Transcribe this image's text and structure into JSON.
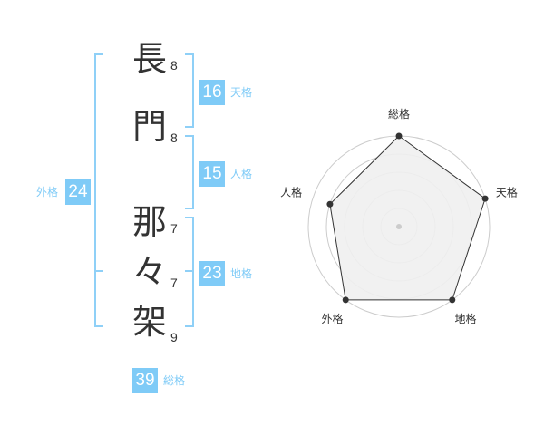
{
  "name_chars": [
    {
      "char": "長",
      "strokes": "8"
    },
    {
      "char": "門",
      "strokes": "8"
    },
    {
      "char": "那",
      "strokes": "7"
    },
    {
      "char": "々",
      "strokes": "7"
    },
    {
      "char": "架",
      "strokes": "9"
    }
  ],
  "scores": {
    "tenkaku": {
      "label": "天格",
      "value": "16"
    },
    "jinkaku": {
      "label": "人格",
      "value": "15"
    },
    "chikaku": {
      "label": "地格",
      "value": "23"
    },
    "gaikaku": {
      "label": "外格",
      "value": "24"
    },
    "soukaku": {
      "label": "総格",
      "value": "39"
    }
  },
  "colors": {
    "accent": "#7fcbf7",
    "radar_fill": "#f0f0f0",
    "radar_line": "#333333",
    "grid": "#cccccc"
  },
  "chart_data": {
    "type": "radar",
    "axes": [
      "総格",
      "天格",
      "地格",
      "外格",
      "人格"
    ],
    "values": [
      5,
      5,
      5,
      5,
      4
    ],
    "range": [
      0,
      5
    ],
    "rings": 5
  }
}
